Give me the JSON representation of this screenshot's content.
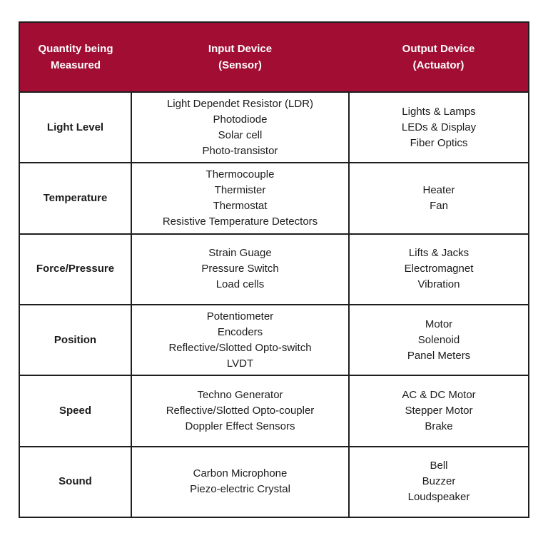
{
  "colors": {
    "header_bg": "#A10D33",
    "header_text": "#FFFFFF",
    "border": "#1E1E1E",
    "body_text": "#1C1C1C",
    "page_bg": "#FFFFFF"
  },
  "table": {
    "header": [
      {
        "line1": "Quantity being",
        "line2": "Measured"
      },
      {
        "line1": "Input Device",
        "line2": "(Sensor)"
      },
      {
        "line1": "Output Device",
        "line2": "(Actuator)"
      }
    ],
    "rows": [
      {
        "quantity": "Light Level",
        "input": [
          "Light Dependet Resistor (LDR)",
          "Photodiode",
          "Solar cell",
          "Photo-transistor"
        ],
        "output": [
          "Lights & Lamps",
          "LEDs & Display",
          "Fiber Optics"
        ]
      },
      {
        "quantity": "Temperature",
        "input": [
          "Thermocouple",
          "Thermister",
          "Thermostat",
          "Resistive Temperature Detectors"
        ],
        "output": [
          "Heater",
          "Fan"
        ]
      },
      {
        "quantity": "Force/Pressure",
        "input": [
          "Strain Guage",
          "Pressure Switch",
          "Load cells"
        ],
        "output": [
          "Lifts & Jacks",
          "Electromagnet",
          "Vibration"
        ]
      },
      {
        "quantity": "Position",
        "input": [
          "Potentiometer",
          "Encoders",
          "Reflective/Slotted Opto-switch",
          "LVDT"
        ],
        "output": [
          "Motor",
          "Solenoid",
          "Panel Meters"
        ]
      },
      {
        "quantity": "Speed",
        "input": [
          "Techno Generator",
          "Reflective/Slotted Opto-coupler",
          "Doppler Effect Sensors"
        ],
        "output": [
          "AC & DC Motor",
          "Stepper Motor",
          "Brake"
        ]
      },
      {
        "quantity": "Sound",
        "input": [
          "Carbon Microphone",
          "Piezo-electric Crystal"
        ],
        "output": [
          "Bell",
          "Buzzer",
          "Loudspeaker"
        ]
      }
    ]
  }
}
